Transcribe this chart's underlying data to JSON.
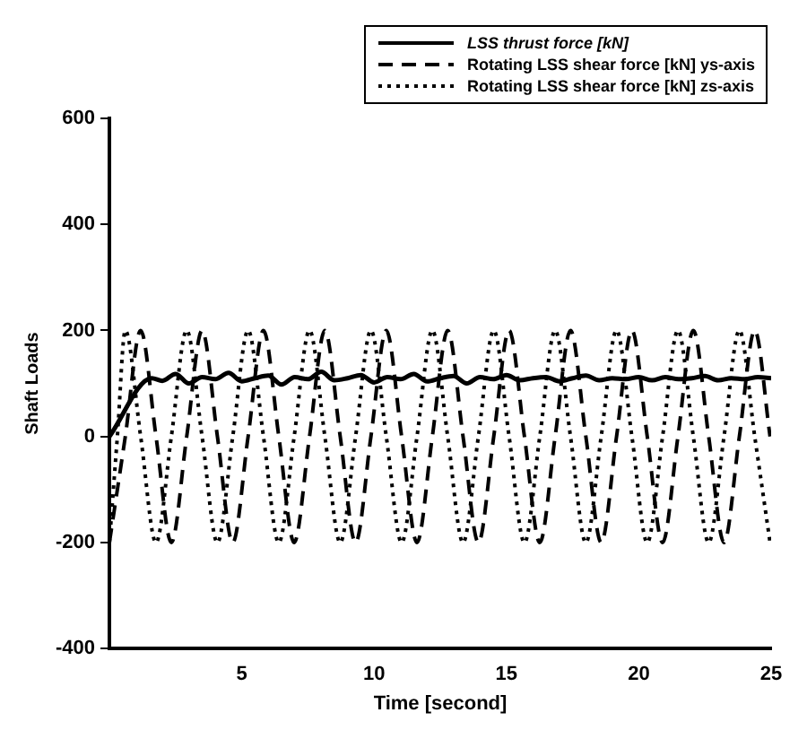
{
  "chart_data": {
    "type": "line",
    "xlabel": "Time [second]",
    "ylabel": "Shaft Loads",
    "xlim": [
      0,
      25
    ],
    "xticks": [
      5,
      10,
      15,
      20,
      25
    ],
    "ylim": [
      -400,
      600
    ],
    "yticks": [
      -400,
      -200,
      0,
      200,
      400,
      600
    ],
    "grid": false,
    "legend": "top right",
    "marker": "none",
    "series": [
      {
        "name": "LSS thrust force [kN]",
        "color": "#000000",
        "line_style": "solid",
        "x": [
          0,
          1.6,
          2,
          2.5,
          3,
          3.5,
          4,
          4.5,
          5,
          5.5,
          6,
          6.5,
          7,
          7.5,
          8,
          8.5,
          9,
          9.5,
          10,
          10.5,
          11,
          11.5,
          12,
          12.5,
          13,
          13.5,
          14,
          14.5,
          15,
          15.5,
          16,
          16.5,
          17,
          17.5,
          18,
          18.5,
          19,
          19.5,
          20,
          20.5,
          21,
          21.5,
          22,
          22.5,
          23,
          23.5,
          24,
          24.5,
          25
        ],
        "values": [
          0,
          110,
          105,
          118,
          100,
          112,
          108,
          120,
          104,
          110,
          115,
          98,
          112,
          108,
          122,
          106,
          110,
          116,
          102,
          112,
          108,
          118,
          104,
          110,
          114,
          100,
          112,
          108,
          116,
          106,
          110,
          112,
          104,
          110,
          115,
          106,
          110,
          108,
          112,
          106,
          112,
          108,
          110,
          114,
          106,
          110,
          108,
          112,
          110
        ]
      },
      {
        "name": "Rotating LSS shear force [kN] ys-axis",
        "color": "#000000",
        "line_style": "dashed",
        "x": [
          0,
          0.6,
          1.18,
          1.76,
          2.34,
          2.92,
          3.5,
          4.08,
          4.66,
          5.24,
          5.82,
          6.4,
          6.98,
          7.56,
          8.14,
          8.72,
          9.3,
          9.88,
          10.46,
          11.04,
          11.62,
          12.2,
          12.78,
          13.36,
          13.94,
          14.52,
          15.1,
          15.68,
          16.26,
          16.84,
          17.42,
          18,
          18.58,
          19.16,
          19.74,
          20.32,
          20.9,
          21.48,
          22.06,
          22.64,
          23.22,
          23.8,
          24.38,
          24.96
        ],
        "values": [
          -200,
          0,
          200,
          0,
          -200,
          0,
          200,
          0,
          -200,
          0,
          200,
          0,
          -200,
          0,
          200,
          0,
          -200,
          0,
          200,
          0,
          -200,
          0,
          200,
          0,
          -200,
          0,
          200,
          0,
          -200,
          0,
          200,
          0,
          -200,
          0,
          200,
          0,
          -200,
          0,
          200,
          0,
          -200,
          0,
          200,
          0
        ]
      },
      {
        "name": "Rotating LSS shear force [kN] zs-axis",
        "color": "#000000",
        "line_style": "dotted",
        "x": [
          0,
          0.3,
          0.6,
          1.18,
          1.76,
          2.34,
          2.92,
          3.5,
          4.08,
          4.66,
          5.24,
          5.82,
          6.4,
          6.98,
          7.56,
          8.14,
          8.72,
          9.3,
          9.88,
          10.46,
          11.04,
          11.62,
          12.2,
          12.78,
          13.36,
          13.94,
          14.52,
          15.1,
          15.68,
          16.26,
          16.84,
          17.42,
          18,
          18.58,
          19.16,
          19.74,
          20.32,
          20.9,
          21.48,
          22.06,
          22.64,
          23.22,
          23.8,
          24.38,
          24.96
        ],
        "values": [
          -200,
          0,
          200,
          0,
          -200,
          0,
          200,
          0,
          -200,
          0,
          200,
          0,
          -200,
          0,
          200,
          0,
          -200,
          0,
          200,
          0,
          -200,
          0,
          200,
          0,
          -200,
          0,
          200,
          0,
          -200,
          0,
          200,
          0,
          -200,
          0,
          200,
          0,
          -200,
          0,
          200,
          0,
          -200,
          0,
          200,
          0,
          -200
        ]
      }
    ]
  }
}
